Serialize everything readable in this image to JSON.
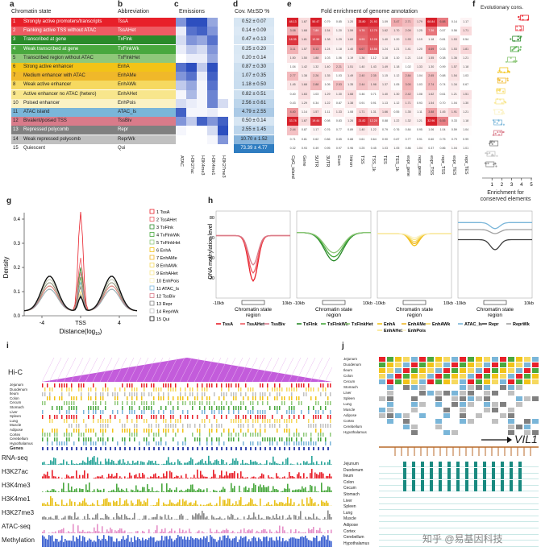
{
  "panels": {
    "a": "a",
    "b": "b",
    "c": "c",
    "d": "d",
    "e": "e",
    "f": "f",
    "g": "g",
    "h": "h",
    "i": "i",
    "j": "j"
  },
  "panel_a": {
    "header": "Chromatin state",
    "states": [
      {
        "num": "1",
        "name": "Strongly active promoters/transcripts",
        "color": "#e8202a",
        "text": "#ffffff"
      },
      {
        "num": "2",
        "name": "Flanking active TSS without ATAC",
        "color": "#ee5b63",
        "text": "#ffffff"
      },
      {
        "num": "3",
        "name": "Transcribed at gene",
        "color": "#2a8a2a",
        "text": "#ffffff"
      },
      {
        "num": "4",
        "name": "Weak transcribed at gene",
        "color": "#49a83e",
        "text": "#ffffff"
      },
      {
        "num": "5",
        "name": "Transcribed region without ATAC",
        "color": "#8fc87a",
        "text": "#222222"
      },
      {
        "num": "6",
        "name": "Strong active enhancer",
        "color": "#f2c318",
        "text": "#222222"
      },
      {
        "num": "7",
        "name": "Medium enhancer with ATAC",
        "color": "#f0b82a",
        "text": "#222222"
      },
      {
        "num": "8",
        "name": "Weak active enhancer",
        "color": "#f6d960",
        "text": "#222222"
      },
      {
        "num": "9",
        "name": "Active enhancer no ATAC (hetero)",
        "color": "#f8e68c",
        "text": "#222222"
      },
      {
        "num": "10",
        "name": "Poised enhancer",
        "color": "#fbf2c4",
        "text": "#222222"
      },
      {
        "num": "11",
        "name": "ATAC island",
        "color": "#7ab6d9",
        "text": "#222222"
      },
      {
        "num": "12",
        "name": "Bivalent/poised TSS",
        "color": "#d97b8a",
        "text": "#222222"
      },
      {
        "num": "13",
        "name": "Repressed polycomb",
        "color": "#808080",
        "text": "#ffffff"
      },
      {
        "num": "14",
        "name": "Weak repressed polycomb",
        "color": "#c0c0c0",
        "text": "#222222"
      },
      {
        "num": "15",
        "name": "Quiescent",
        "color": "#ffffff",
        "text": "#222222"
      }
    ]
  },
  "panel_b": {
    "header": "Abbreviation",
    "abbrevs": [
      "TssA",
      "TssAHet",
      "TxFlnk",
      "TxFlnkWk",
      "TxFlnkHet",
      "EnhA",
      "EnhAMe",
      "EnhAWk",
      "EnhAHet",
      "EnhPois",
      "ATAC_Is",
      "TssBiv",
      "Repr",
      "ReprWk",
      "Qui"
    ]
  },
  "panel_c": {
    "header": "Emissions",
    "marks": [
      "ATAC",
      "H3K27ac",
      "H3K4me3",
      "H3K4me1",
      "H3K27me3"
    ],
    "levels": [
      [
        0.6,
        1.0,
        1.0,
        0.5,
        0.0
      ],
      [
        0.1,
        0.8,
        0.9,
        0.6,
        0.0
      ],
      [
        0.2,
        0.6,
        0.5,
        0.8,
        0.0
      ],
      [
        0.1,
        0.3,
        0.2,
        0.6,
        0.0
      ],
      [
        0.0,
        0.1,
        0.1,
        0.5,
        0.0
      ],
      [
        0.8,
        1.0,
        0.3,
        1.0,
        0.0
      ],
      [
        0.6,
        0.8,
        0.1,
        0.9,
        0.0
      ],
      [
        0.3,
        0.5,
        0.05,
        0.8,
        0.0
      ],
      [
        0.05,
        0.4,
        0.05,
        0.7,
        0.0
      ],
      [
        0.2,
        0.1,
        0.05,
        0.7,
        0.2
      ],
      [
        0.9,
        0.05,
        0.05,
        0.1,
        0.0
      ],
      [
        0.6,
        0.3,
        0.9,
        0.6,
        0.9
      ],
      [
        0.05,
        0.0,
        0.0,
        0.2,
        1.0
      ],
      [
        0.0,
        0.0,
        0.0,
        0.05,
        0.6
      ],
      [
        0.0,
        0.0,
        0.0,
        0.0,
        0.0
      ]
    ],
    "color": "#2d4fbf"
  },
  "panel_d": {
    "header": "Cov. M±SD %",
    "values": [
      "0.52 ± 0.07",
      "0.14 ± 0.09",
      "0.47 ± 0.13",
      "0.25 ± 0.20",
      "0.20 ± 0.14",
      "0.87 ± 0.30",
      "1.07 ± 0.35",
      "1.18 ± 0.50",
      "0.82 ± 0.51",
      "2.56 ± 0.61",
      "4.79 ± 2.55",
      "0.50 ± 0.14",
      "2.55 ± 1.45",
      "10.70 ± 1.52",
      "73.39 ± 4.77"
    ],
    "shades": [
      0.05,
      0.02,
      0.05,
      0.03,
      0.02,
      0.1,
      0.12,
      0.13,
      0.1,
      0.2,
      0.3,
      0.05,
      0.2,
      0.5,
      1.0
    ],
    "color": "#2f7dc1"
  },
  "panel_e": {
    "title": "Fold enrichment of genome annotation",
    "columns": [
      "CpG_island",
      "Gene",
      "5UTR",
      "3UTR",
      "Exon",
      "Intron",
      "TSS",
      "TSS_1k",
      "TES",
      "TES_1k",
      "expr_gene",
      "repr_gene",
      "expr_TSS",
      "repr_TSS",
      "expr_TES",
      "repr_TES"
    ],
    "values": [
      [
        "48.13",
        "1.67",
        "50.47",
        "0.79",
        "0.85",
        "1.20",
        "33.80",
        "21.93",
        "1.09",
        "3.47",
        "2.71",
        "1.79",
        "68.84",
        "6.88",
        "0.14",
        "1.17"
      ],
      [
        "3.08",
        "1.68",
        "7.89",
        "1.54",
        "1.20",
        "1.59",
        "9.78",
        "12.75",
        "1.62",
        "1.70",
        "2.09",
        "1.25",
        "7.36",
        "0.57",
        "0.56",
        "1.71"
      ],
      [
        "18.35",
        "1.81",
        "12.59",
        "1.38",
        "1.29",
        "1.60",
        "8.93",
        "12.28",
        "1.40",
        "1.20",
        "1.93",
        "1.19",
        "1.18",
        "0.81",
        "1.53",
        "0.54"
      ],
      [
        "3.11",
        "1.57",
        "5.13",
        "1.24",
        "1.18",
        "1.40",
        "6.67",
        "10.56",
        "1.24",
        "1.21",
        "1.41",
        "1.20",
        "4.69",
        "0.33",
        "1.53",
        "1.81"
      ],
      [
        "1.50",
        "1.50",
        "1.88",
        "1.03",
        "1.06",
        "1.19",
        "1.36",
        "1.12",
        "1.18",
        "1.10",
        "1.21",
        "1.18",
        "1.55",
        "0.38",
        "1.36",
        "1.21"
      ],
      [
        "1.04",
        "1.42",
        "1.32",
        "1.40",
        "2.21",
        "1.51",
        "1.40",
        "1.43",
        "1.49",
        "1.18",
        "1.02",
        "1.33",
        "1.30",
        "0.99",
        "1.57",
        "1.18"
      ],
      [
        "2.77",
        "1.38",
        "2.26",
        "1.35",
        "1.03",
        "1.49",
        "2.40",
        "2.35",
        "1.15",
        "1.12",
        "2.84",
        "1.04",
        "2.65",
        "0.88",
        "1.54",
        "1.03"
      ],
      [
        "1.45",
        "1.68",
        "2.88",
        "1.05",
        "2.53",
        "1.35",
        "2.44",
        "1.98",
        "1.37",
        "1.05",
        "3.00",
        "1.03",
        "2.74",
        "0.74",
        "1.34",
        "0.67"
      ],
      [
        "0.40",
        "1.63",
        "1.03",
        "1.29",
        "1.30",
        "1.68",
        "0.46",
        "0.71",
        "1.40",
        "1.30",
        "2.42",
        "1.08",
        "1.62",
        "0.61",
        "1.21",
        "1.51"
      ],
      [
        "0.43",
        "1.29",
        "0.34",
        "1.22",
        "0.87",
        "1.38",
        "0.91",
        "0.91",
        "1.13",
        "1.12",
        "1.71",
        "0.93",
        "1.54",
        "0.70",
        "1.04",
        "1.30"
      ],
      [
        "4.40",
        "1.14",
        "1.57",
        "1.11",
        "1.33",
        "1.08",
        "1.71",
        "1.31",
        "1.66",
        "0.55",
        "1.35",
        "1.11",
        "3.88",
        "1.45",
        "1.91",
        "1.21"
      ],
      [
        "33.78",
        "1.67",
        "19.44",
        "0.98",
        "0.83",
        "1.26",
        "21.82",
        "12.25",
        "0.88",
        "1.22",
        "1.32",
        "1.21",
        "32.96",
        "6.55",
        "0.33",
        "1.18"
      ],
      [
        "2.44",
        "0.87",
        "1.17",
        "0.76",
        "0.77",
        "0.89",
        "1.40",
        "1.22",
        "0.79",
        "0.76",
        "0.84",
        "0.95",
        "1.06",
        "1.04",
        "0.59",
        "1.04"
      ],
      [
        "0.71",
        "0.81",
        "0.62",
        "0.86",
        "0.65",
        "0.88",
        "0.61",
        "0.64",
        "0.90",
        "0.87",
        "0.77",
        "0.91",
        "0.60",
        "0.75",
        "0.79",
        "0.99"
      ],
      [
        "0.32",
        "0.93",
        "0.49",
        "0.95",
        "0.97",
        "0.96",
        "0.25",
        "0.45",
        "1.03",
        "1.05",
        "0.86",
        "1.04",
        "0.37",
        "0.86",
        "1.04",
        "1.01"
      ]
    ]
  },
  "panel_f": {
    "title": "Evolutionary cons.",
    "xlabel": "Enrichment for\nconserved elements",
    "ticks": [
      "1",
      "2",
      "3",
      "4",
      "5"
    ],
    "medians": [
      4.3,
      3.8,
      3.5,
      3.3,
      3.0,
      2.2,
      2.0,
      1.9,
      1.8,
      1.7,
      1.6,
      1.6,
      1.2,
      0.9,
      0.8
    ]
  },
  "panel_g": {
    "xlabel": "Distance(log",
    "xlabel_sub": "10",
    "xlabel_end": ")",
    "ylabel": "Density",
    "xticks": [
      "-4",
      "TSS",
      "4"
    ],
    "yticks": [
      "0.0",
      "0.1",
      "0.2",
      "0.3",
      "0.4"
    ],
    "legend": [
      "1 TssA",
      "2 TssAHet",
      "3 TxFlnk",
      "4 TxFlnkWk",
      "5 TxFlnkHet",
      "6 EnhA",
      "7 EnhAMe",
      "8 EnhAWk",
      "9 EnhAHet",
      "10 EnhPois",
      "11 ATAC_Is",
      "12 TssBiv",
      "13 Repr",
      "14 ReprWk",
      "15 Qui"
    ]
  },
  "panel_h": {
    "ylabel": "DNA methylation level",
    "yticks": [
      "20",
      "40",
      "60",
      "80"
    ],
    "xlabel": "Chromatin state\nregion",
    "xleft": "-10kb",
    "xright": "10kb",
    "groups": [
      {
        "legend": [
          "TssA",
          "TssAHet",
          "TssBiv"
        ],
        "colors": [
          "#e8202a",
          "#ee5b63",
          "#d97b8a"
        ]
      },
      {
        "legend": [
          "TxFlnk",
          "TxFlnkWk",
          "TxFlnkHet"
        ],
        "colors": [
          "#2a8a2a",
          "#49a83e",
          "#8fc87a"
        ]
      },
      {
        "legend": [
          "EnhA",
          "EnhAMe",
          "EnhAWk",
          "EnhAHet",
          "EnhPois"
        ],
        "colors": [
          "#f2c318",
          "#f0b82a",
          "#f6d960",
          "#f8e68c",
          "#fbf2c4"
        ]
      },
      {
        "legend": [
          "ATAC_Is",
          "Repr",
          "ReprWk"
        ],
        "colors": [
          "#7ab6d9",
          "#404040",
          "#a0a0a0"
        ]
      }
    ]
  },
  "panel_i": {
    "hic": "Hi-C",
    "tissues": [
      "Jejunum",
      "Duodenum",
      "Ileum",
      "Colon",
      "Cecum",
      "Stomach",
      "Liver",
      "Spleen",
      "Lung",
      "Muscle",
      "Adipose",
      "Cortex",
      "Cerebellum",
      "Hypothalamus"
    ],
    "genes": "Genes",
    "tracks": [
      {
        "name": "RNA-seq",
        "color": "#2aa59a"
      },
      {
        "name": "H3K27ac",
        "color": "#e8202a"
      },
      {
        "name": "H3K4me3",
        "color": "#49a83e"
      },
      {
        "name": "H3K4me1",
        "color": "#e8c018"
      },
      {
        "name": "H3K27me3",
        "color": "#888888"
      },
      {
        "name": "ATAC-seq",
        "color": "#e58fc8"
      },
      {
        "name": "Methylation",
        "color": "#3a5fd0"
      }
    ]
  },
  "panel_j": {
    "tissues": [
      "Jejunum",
      "Duodenum",
      "Ileum",
      "Colon",
      "Cecum",
      "Stomach",
      "Liver",
      "Spleen",
      "Lung",
      "Muscle",
      "Adipose",
      "Cortex",
      "Cerebellum",
      "Hypothalamus"
    ],
    "gene": "VIL1"
  },
  "watermark": "知乎 @易基因科技"
}
